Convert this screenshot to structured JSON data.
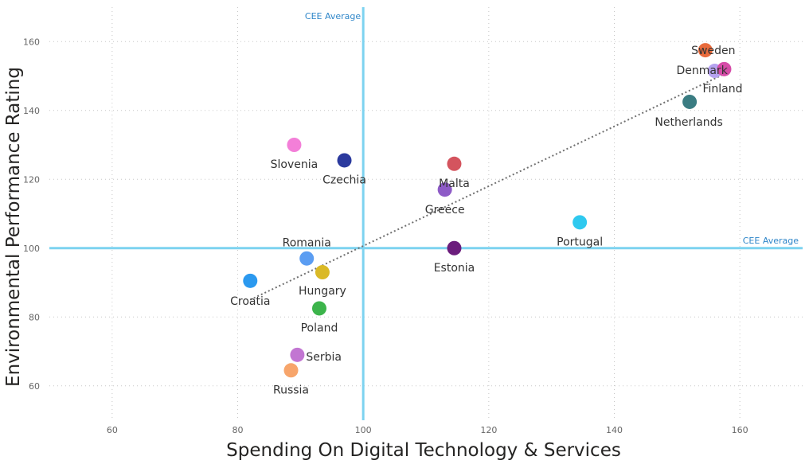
{
  "chart_data": {
    "type": "scatter",
    "xlabel": "Spending On Digital Technology & Services",
    "ylabel": "Environmental Performance Rating",
    "xlim": [
      50,
      170
    ],
    "ylim": [
      50,
      170
    ],
    "x_ticks": [
      60,
      80,
      100,
      120,
      140,
      160
    ],
    "y_ticks": [
      60,
      80,
      100,
      120,
      140,
      160
    ],
    "grid": true,
    "reference_lines": [
      {
        "axis": "x",
        "value": 100,
        "label": "CEE Average",
        "color": "#7dd3f0"
      },
      {
        "axis": "y",
        "value": 100,
        "label": "CEE Average",
        "color": "#7dd3f0"
      }
    ],
    "trend_line": {
      "x": [
        82,
        158
      ],
      "y": [
        85,
        151
      ],
      "color": "#707070"
    },
    "points": [
      {
        "label": "Sweden",
        "x": 154.5,
        "y": 157.5,
        "color": "#e96b3c"
      },
      {
        "label": "Denmark",
        "x": 156,
        "y": 151.5,
        "color": "#b6a3f0"
      },
      {
        "label": "Finland",
        "x": 157.5,
        "y": 152,
        "color": "#d64ca8"
      },
      {
        "label": "Netherlands",
        "x": 152,
        "y": 142.5,
        "color": "#3a7c82"
      },
      {
        "label": "Slovenia",
        "x": 89,
        "y": 130,
        "color": "#f37fd8"
      },
      {
        "label": "Czechia",
        "x": 97,
        "y": 125.5,
        "color": "#2b3a9e"
      },
      {
        "label": "Malta",
        "x": 114.5,
        "y": 124.5,
        "color": "#d4545e"
      },
      {
        "label": "Greece",
        "x": 113,
        "y": 117,
        "color": "#8e5bc7"
      },
      {
        "label": "Portugal",
        "x": 134.5,
        "y": 107.5,
        "color": "#2fc9ef"
      },
      {
        "label": "Estonia",
        "x": 114.5,
        "y": 100,
        "color": "#6b1d7c"
      },
      {
        "label": "Romania",
        "x": 91,
        "y": 97,
        "color": "#5b9df2"
      },
      {
        "label": "Hungary",
        "x": 93.5,
        "y": 93,
        "color": "#dab926"
      },
      {
        "label": "Croatia",
        "x": 82,
        "y": 90.5,
        "color": "#2b99ef"
      },
      {
        "label": "Poland",
        "x": 93,
        "y": 82.5,
        "color": "#3cb44b"
      },
      {
        "label": "Serbia",
        "x": 89.5,
        "y": 69,
        "color": "#c276d2"
      },
      {
        "label": "Russia",
        "x": 88.5,
        "y": 64.5,
        "color": "#f7a56b"
      }
    ]
  }
}
